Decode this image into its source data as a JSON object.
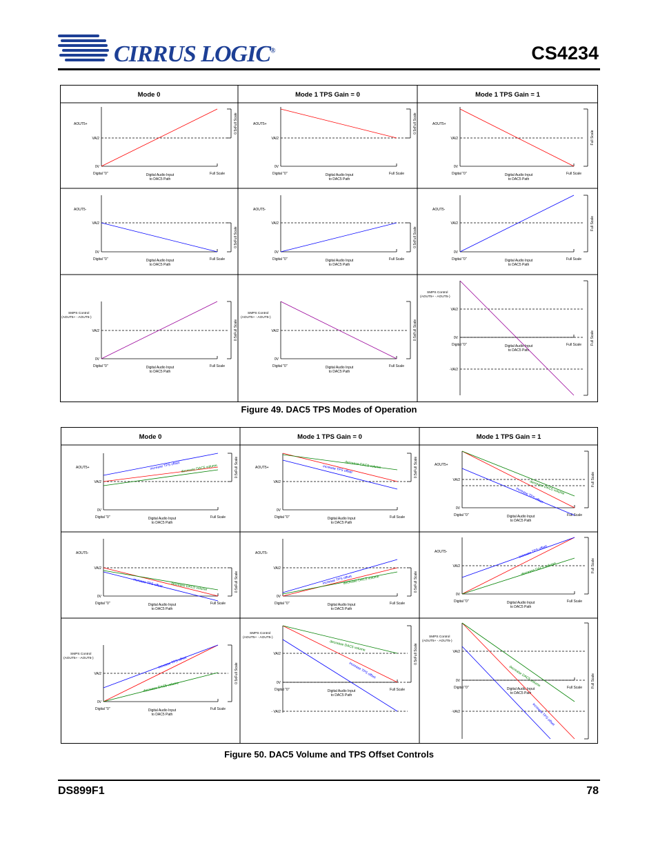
{
  "header": {
    "logo_text": "CIRRUS LOGIC",
    "logo_reg": "®",
    "part_number": "CS4234"
  },
  "footer": {
    "doc_id": "DS899F1",
    "page_number": "78"
  },
  "colors": {
    "logo_blue": "#1d3f95",
    "red_trace": "#ff0000",
    "blue_trace": "#0000ff",
    "green_trace": "#008000",
    "purple_trace": "#990099"
  },
  "figure49": {
    "caption": "Figure 49.  DAC5 TPS Modes of Operation",
    "columns": [
      "Mode 0",
      "Mode 1 TPS Gain = 0",
      "Mode 1 TPS Gain = 1"
    ]
  },
  "figure50": {
    "caption": "Figure 50.  DAC5 Volume and TPS Offset Controls",
    "columns": [
      "Mode 0",
      "Mode 1 TPS Gain = 0",
      "Mode 1 TPS Gain = 1"
    ]
  },
  "labels": {
    "aout_plus": "AOUT5+",
    "aout_minus": "AOUT5-",
    "smps_line1": "SMPS Control",
    "smps_line2": "(AOUT5+ - AOUT5-)",
    "va2": "VA/2",
    "neg_va2": "-VA/2",
    "neg_va2_spaced": "- VA/2",
    "zero_v": "0V",
    "digital_zero": "Digital \"0\"",
    "input_line1": "Digital Audio Input",
    "input_line2": "to DAC5 Path",
    "full_scale": "Full Scale",
    "half_full_scale": "0.5xFull Scale",
    "increase_tps": "increase TPS offset",
    "decrease_vol": "decrease DAC5 volume"
  }
}
